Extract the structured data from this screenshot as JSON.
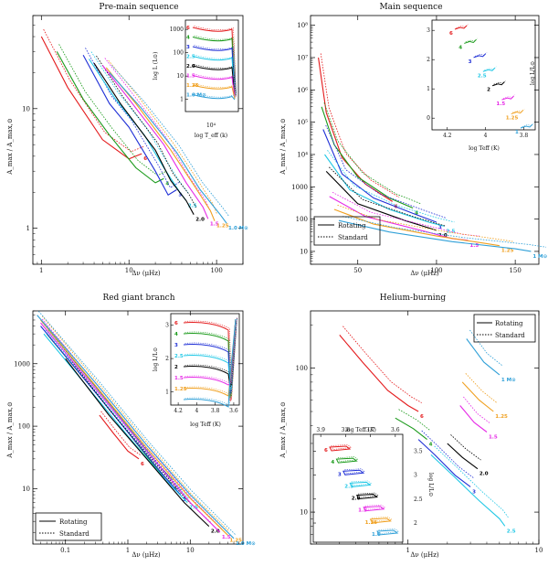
{
  "figure": {
    "colors": {
      "6": "#e41a1c",
      "4": "#1a9a1a",
      "3": "#1f2fd6",
      "2.5": "#22c8e6",
      "2.0": "#000000",
      "1.5": "#e62ae6",
      "1.25": "#f0a020",
      "1.0": "#30a0d8"
    },
    "legend": {
      "rotating": "Rotating",
      "standard": "Standard"
    }
  },
  "chart_data": [
    {
      "id": "pms",
      "type": "line",
      "title": "Pre-main sequence",
      "xlabel": "Δν  (μHz)",
      "ylabel": "A_max / A_max,⊙",
      "xscale": "log",
      "yscale": "log",
      "xlim": [
        0.8,
        200
      ],
      "ylim": [
        0.5,
        60
      ],
      "xticks": [
        "1",
        "10",
        "100"
      ],
      "xtick_values": [
        1,
        10,
        100
      ],
      "yticks": [
        "1",
        "10"
      ],
      "ytick_values": [
        1,
        10
      ],
      "mass_labels": [
        "6",
        "4",
        "3",
        "2.5",
        "2.0",
        "1.5",
        "1.25",
        "1.0 M⊙"
      ],
      "series": [
        {
          "mass": "6",
          "x": [
            1,
            2,
            5,
            10,
            14
          ],
          "y": [
            40,
            15,
            5.5,
            3.8,
            4.2
          ]
        },
        {
          "mass": "4",
          "x": [
            1.5,
            3,
            6,
            12,
            20,
            25
          ],
          "y": [
            30,
            12,
            6,
            3.2,
            2.4,
            2.6
          ]
        },
        {
          "mass": "3",
          "x": [
            3,
            6,
            10,
            20,
            28,
            35
          ],
          "y": [
            28,
            11,
            7,
            3.0,
            1.9,
            2.1
          ]
        },
        {
          "mass": "2.5",
          "x": [
            3.5,
            7,
            15,
            25,
            38,
            45
          ],
          "y": [
            26,
            12,
            6,
            3.2,
            2.0,
            1.7
          ]
        },
        {
          "mass": "2.0",
          "x": [
            4,
            8,
            20,
            30,
            45,
            55
          ],
          "y": [
            24,
            11,
            4.5,
            2.5,
            1.7,
            1.3
          ]
        },
        {
          "mass": "1.5",
          "x": [
            5,
            10,
            25,
            45,
            70,
            80
          ],
          "y": [
            23,
            12,
            5,
            2.4,
            1.5,
            1.2
          ]
        },
        {
          "mass": "1.25",
          "x": [
            5.5,
            12,
            30,
            55,
            85,
            95
          ],
          "y": [
            22,
            11,
            4.5,
            2.3,
            1.4,
            1.15
          ]
        },
        {
          "mass": "1.0",
          "x": [
            6,
            14,
            35,
            65,
            110,
            130
          ],
          "y": [
            20,
            10,
            4.3,
            2.1,
            1.3,
            1.1
          ]
        }
      ],
      "inset": {
        "xlabel": "log T_eff  (k)",
        "ylabel": "log L  (L⊙)",
        "xtick_label": "10⁴",
        "yticks": [
          "1",
          "10",
          "100",
          "1000"
        ],
        "ytick_values": [
          1,
          10,
          100,
          1000
        ],
        "mass_labels": [
          "6",
          "4",
          "3",
          "2.5",
          "2.0",
          "1.5",
          "1.25",
          "1.0 M⊙"
        ]
      }
    },
    {
      "id": "ms",
      "type": "line",
      "title": "Main sequence",
      "xlabel": "Δν  (μHz)",
      "ylabel": "A_max / A_max,⊙",
      "xscale": "linear",
      "yscale": "log",
      "xlim": [
        20,
        165
      ],
      "ylim": [
        4,
        200000000.0
      ],
      "xticks": [
        "50",
        "100",
        "150"
      ],
      "xtick_values": [
        50,
        100,
        150
      ],
      "yticks": [
        "10",
        "100",
        "1000",
        "10⁴",
        "10⁵",
        "10⁶",
        "10⁷",
        "10⁸"
      ],
      "ytick_values": [
        10,
        100,
        1000,
        10000,
        100000,
        1000000,
        10000000,
        100000000
      ],
      "mass_labels": [
        "6",
        "4",
        "3",
        "2.5",
        "2.0",
        "1.5",
        "1.25",
        "1 M⊙"
      ],
      "series": [
        {
          "mass": "6",
          "x": [
            25,
            30,
            40,
            55,
            72
          ],
          "y": [
            10000000.0,
            200000.0,
            8000,
            1200,
            350
          ]
        },
        {
          "mass": "4",
          "x": [
            27,
            35,
            50,
            70,
            85
          ],
          "y": [
            300000.0,
            20000.0,
            2000,
            450,
            220
          ]
        },
        {
          "mass": "3",
          "x": [
            28,
            40,
            60,
            85,
            100
          ],
          "y": [
            60000.0,
            2500,
            450,
            150,
            80
          ]
        },
        {
          "mass": "2.5",
          "x": [
            29,
            45,
            70,
            95,
            105
          ],
          "y": [
            10000.0,
            800,
            200,
            80,
            60
          ]
        },
        {
          "mass": "2.0",
          "x": [
            30,
            50,
            80,
            100
          ],
          "y": [
            3000,
            300,
            90,
            45
          ]
        },
        {
          "mass": "1.5",
          "x": [
            32,
            55,
            90,
            110,
            120
          ],
          "y": [
            500,
            120,
            45,
            25,
            22
          ]
        },
        {
          "mass": "1.25",
          "x": [
            35,
            60,
            100,
            130,
            140
          ],
          "y": [
            200,
            70,
            30,
            18,
            15
          ]
        },
        {
          "mass": "1.0",
          "x": [
            38,
            70,
            110,
            150,
            160
          ],
          "y": [
            90,
            40,
            20,
            12,
            10
          ]
        }
      ],
      "inset": {
        "xlabel": "log Teff (K)",
        "ylabel": "log L/L⊙",
        "xticks": [
          "4.2",
          "4",
          "3.8"
        ],
        "xtick_values": [
          4.2,
          4.0,
          3.8
        ],
        "yticks": [
          "0",
          "1",
          "2",
          "3"
        ],
        "ytick_values": [
          0,
          1,
          2,
          3
        ],
        "mass_labels": [
          "6",
          "4",
          "3",
          "2.5",
          "2",
          "1.5",
          "1.25",
          "1"
        ]
      }
    },
    {
      "id": "rgb",
      "type": "line",
      "title": "Red giant branch",
      "xlabel": "Δν  (μHz)",
      "ylabel": "A_max / A_max,⊙",
      "xscale": "log",
      "yscale": "log",
      "xlim": [
        0.03,
        70
      ],
      "ylim": [
        1.3,
        7000
      ],
      "xticks": [
        "0.1",
        "1",
        "10"
      ],
      "xtick_values": [
        0.1,
        1,
        10
      ],
      "yticks": [
        "10",
        "100",
        "1000"
      ],
      "ytick_values": [
        10,
        100,
        1000
      ],
      "mass_labels": [
        "6",
        "4",
        "3",
        "2.5",
        "2.0",
        "1.5",
        "1.25",
        "1.0 M⊙"
      ],
      "series": [
        {
          "mass": "6",
          "x": [
            0.35,
            0.6,
            1,
            1.5
          ],
          "y": [
            150,
            75,
            40,
            30
          ]
        },
        {
          "mass": "4",
          "x": [
            0.05,
            0.3,
            1,
            3,
            5
          ],
          "y": [
            3000,
            350,
            80,
            20,
            12
          ]
        },
        {
          "mass": "3",
          "x": [
            0.04,
            0.3,
            1,
            4,
            7
          ],
          "y": [
            4000,
            350,
            80,
            15,
            8
          ]
        },
        {
          "mass": "2.5",
          "x": [
            0.045,
            0.3,
            1,
            4,
            9
          ],
          "y": [
            3000,
            300,
            70,
            14,
            6
          ]
        },
        {
          "mass": "2.0",
          "x": [
            0.1,
            0.5,
            2,
            8,
            20
          ],
          "y": [
            1200,
            150,
            30,
            6,
            2.5
          ]
        },
        {
          "mass": "1.5",
          "x": [
            0.04,
            0.3,
            2,
            10,
            30
          ],
          "y": [
            4500,
            400,
            40,
            6,
            2
          ]
        },
        {
          "mass": "1.25",
          "x": [
            0.04,
            0.3,
            2,
            10,
            40
          ],
          "y": [
            5000,
            450,
            45,
            7,
            1.8
          ]
        },
        {
          "mass": "1.0",
          "x": [
            0.035,
            0.3,
            2,
            10,
            50
          ],
          "y": [
            6000,
            500,
            50,
            8,
            1.6
          ]
        }
      ],
      "inset": {
        "xlabel": "log Teff (K)",
        "ylabel": "log L/L⊙",
        "xticks": [
          "4.2",
          "4",
          "3.8",
          "3.6"
        ],
        "xtick_values": [
          4.2,
          4.0,
          3.8,
          3.6
        ],
        "yticks": [
          "1",
          "2",
          "3"
        ],
        "ytick_values": [
          1,
          2,
          3
        ],
        "mass_labels": [
          "6",
          "4",
          "3",
          "2.5",
          "2",
          "1.5",
          "1.25"
        ]
      }
    },
    {
      "id": "heb",
      "type": "line",
      "title": "Helium-burning",
      "xlabel": "Δν  (μHz)",
      "ylabel": "A_max / A_max,⊙",
      "xscale": "log",
      "yscale": "log",
      "xlim": [
        0.18,
        10
      ],
      "ylim": [
        6,
        250
      ],
      "xticks": [
        "1",
        "10"
      ],
      "xtick_values": [
        1,
        10
      ],
      "yticks": [
        "10",
        "100"
      ],
      "ytick_values": [
        10,
        100
      ],
      "mass_labels": [
        "6",
        "4",
        "3",
        "2.5",
        "2.0",
        "1.5",
        "1.25",
        "1 M⊙"
      ],
      "series": [
        {
          "mass": "6",
          "x": [
            0.3,
            0.45,
            0.7,
            1.0,
            1.2
          ],
          "y": [
            170,
            110,
            70,
            55,
            50
          ]
        },
        {
          "mass": "4",
          "x": [
            0.8,
            1.1,
            1.4
          ],
          "y": [
            45,
            38,
            32
          ]
        },
        {
          "mass": "3",
          "x": [
            1.2,
            1.6,
            2.3,
            3.0
          ],
          "y": [
            32,
            25,
            18,
            15
          ]
        },
        {
          "mass": "2.5",
          "x": [
            1.5,
            2.2,
            3.5,
            5.0,
            5.5
          ],
          "y": [
            25,
            18,
            12,
            9,
            8
          ]
        },
        {
          "mass": "2.0",
          "x": [
            2.0,
            2.6,
            3.4
          ],
          "y": [
            30,
            24,
            20
          ]
        },
        {
          "mass": "1.5",
          "x": [
            2.5,
            3.2,
            4.0
          ],
          "y": [
            55,
            42,
            36
          ]
        },
        {
          "mass": "1.25",
          "x": [
            2.6,
            3.5,
            4.5
          ],
          "y": [
            80,
            60,
            50
          ]
        },
        {
          "mass": "1.0",
          "x": [
            2.8,
            3.8,
            5.0
          ],
          "y": [
            160,
            110,
            90
          ]
        }
      ],
      "inset": {
        "xlabel": "log Teff (K)",
        "ylabel": "log L/L⊙",
        "xticks": [
          "3.9",
          "3.8",
          "3.7",
          "3.6"
        ],
        "xtick_values": [
          3.9,
          3.8,
          3.7,
          3.6
        ],
        "yticks": [
          "2",
          "2.5",
          "3",
          "3.5"
        ],
        "ytick_values": [
          2,
          2.5,
          3,
          3.5
        ],
        "mass_labels": [
          "6",
          "4",
          "3",
          "2.5",
          "2.0",
          "1.5",
          "1.25",
          "1.0"
        ]
      }
    }
  ]
}
